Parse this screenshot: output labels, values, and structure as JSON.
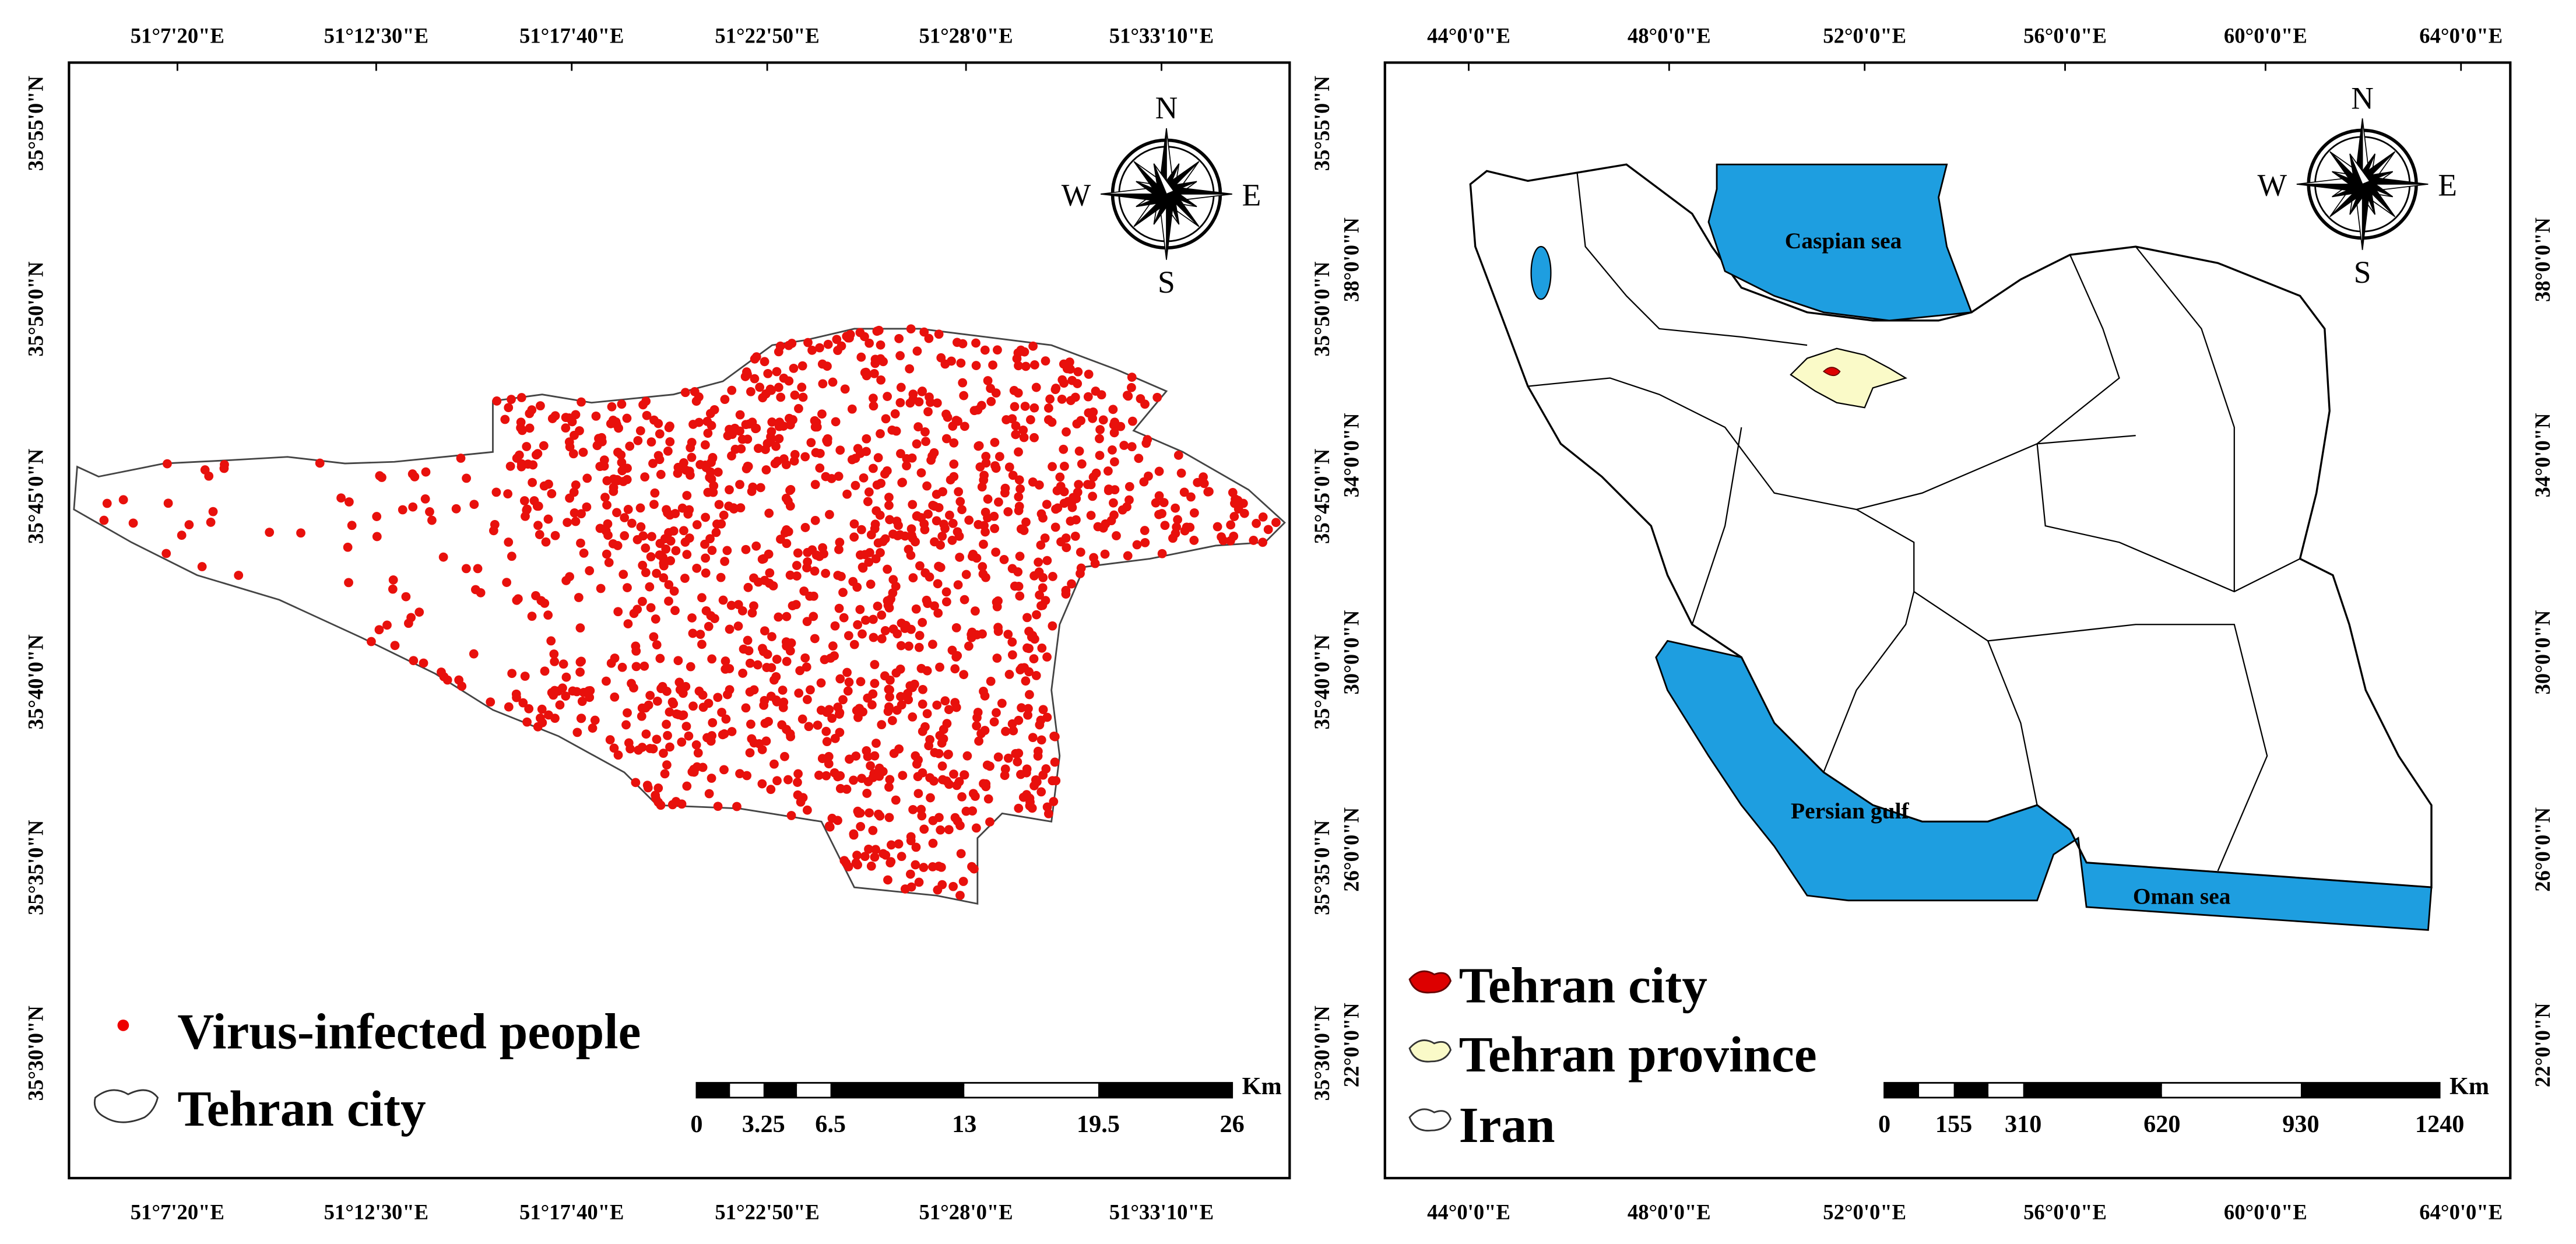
{
  "left_map": {
    "x_labels": [
      "51°7'20\"E",
      "51°12'30\"E",
      "51°17'40\"E",
      "51°22'50\"E",
      "51°28'0\"E",
      "51°33'10\"E"
    ],
    "y_labels": [
      "35°55'0\"N",
      "35°50'0\"N",
      "35°45'0\"N",
      "35°40'0\"N",
      "35°35'0\"N",
      "35°30'0\"N"
    ],
    "compass": {
      "n": "N",
      "e": "E",
      "s": "S",
      "w": "W"
    },
    "legend": [
      "Virus-infected people",
      "Tehran city"
    ],
    "scale_bar": {
      "labels": [
        "0",
        "3.25",
        "6.5",
        "13",
        "19.5",
        "26"
      ],
      "unit": "Km"
    }
  },
  "right_map": {
    "x_labels": [
      "44°0'0\"E",
      "48°0'0\"E",
      "52°0'0\"E",
      "56°0'0\"E",
      "60°0'0\"E",
      "64°0'0\"E"
    ],
    "y_labels": [
      "38°0'0\"N",
      "34°0'0\"N",
      "30°0'0\"N",
      "26°0'0\"N",
      "22°0'0\"N"
    ],
    "compass": {
      "n": "N",
      "e": "E",
      "s": "S",
      "w": "W"
    },
    "sea_labels": [
      "Caspian sea",
      "Persian gulf",
      "Oman sea"
    ],
    "legend": [
      "Tehran city",
      "Tehran province",
      "Iran"
    ],
    "scale_bar": {
      "labels": [
        "0",
        "155",
        "310",
        "620",
        "930",
        "1240"
      ],
      "unit": "Km"
    }
  }
}
